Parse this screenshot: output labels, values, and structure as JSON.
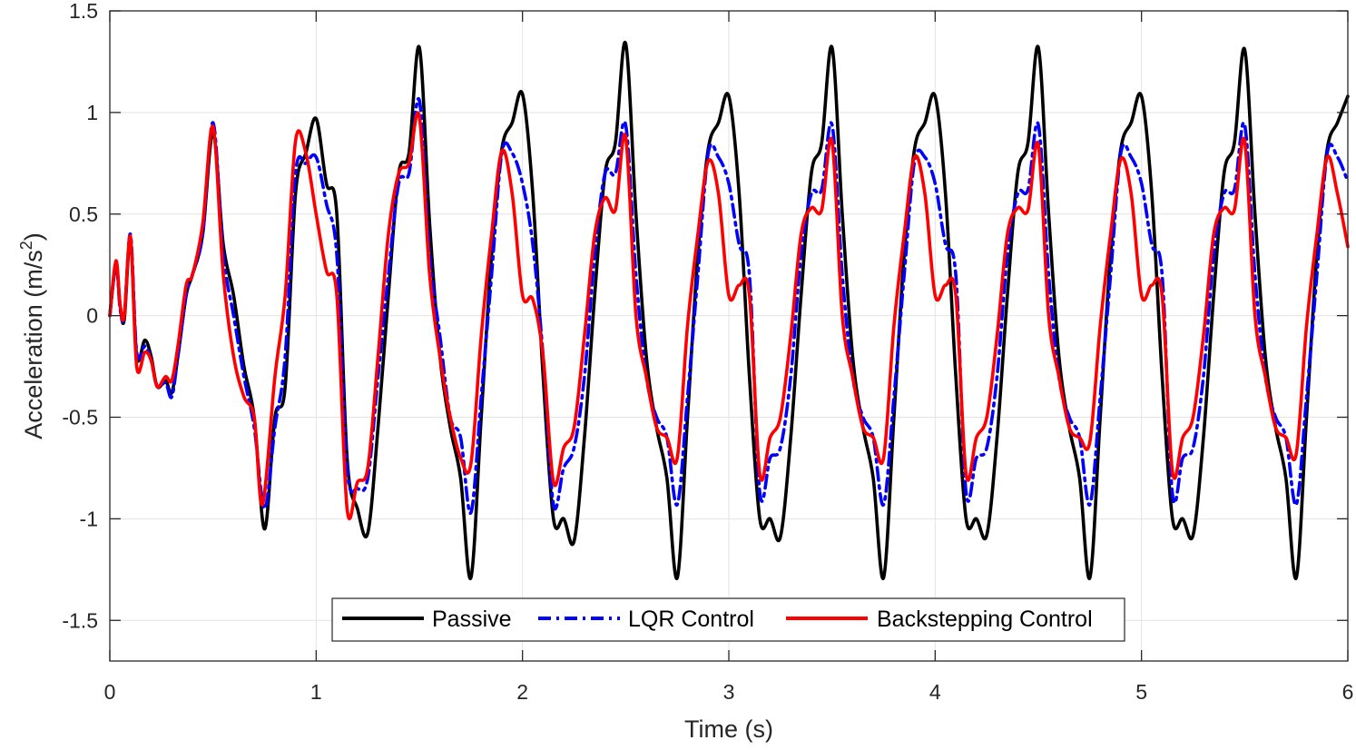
{
  "chart_data": {
    "type": "line",
    "title": "",
    "xlabel": "Time (s)",
    "ylabel": "Acceleration (m/s",
    "ylabel_superscript": "2",
    "ylabel_suffix": ")",
    "xlim": [
      0,
      6
    ],
    "ylim": [
      -1.7,
      1.5
    ],
    "xticks": [
      0,
      1,
      2,
      3,
      4,
      5,
      6
    ],
    "xtick_labels": [
      "0",
      "1",
      "2",
      "3",
      "4",
      "5",
      "6"
    ],
    "yticks": [
      -1.5,
      -1,
      -0.5,
      0,
      0.5,
      1,
      1.5
    ],
    "ytick_labels": [
      "-1.5",
      "-1",
      "-0.5",
      "0",
      "0.5",
      "1",
      "1.5"
    ],
    "grid": true,
    "legend_position": "bottom-center",
    "series": [
      {
        "name": "Passive",
        "color": "#000000",
        "style": "solid",
        "x": [
          0,
          0.03,
          0.05,
          0.07,
          0.1,
          0.13,
          0.17,
          0.2,
          0.23,
          0.27,
          0.3,
          0.33,
          0.37,
          0.4,
          0.45,
          0.5,
          0.55,
          0.6,
          0.65,
          0.7,
          0.75,
          0.8,
          0.85,
          0.9,
          0.95,
          1.0,
          1.05,
          1.1,
          1.15,
          1.2,
          1.25,
          1.3,
          1.35,
          1.4,
          1.45,
          1.5,
          1.55,
          1.6,
          1.65,
          1.7,
          1.75,
          1.8,
          1.85,
          1.9,
          1.95,
          2.0,
          2.05,
          2.1,
          2.15,
          2.2,
          2.25,
          2.3,
          2.35,
          2.4,
          2.45,
          2.5,
          2.55,
          2.6,
          2.65,
          2.7,
          2.75,
          2.8,
          2.85,
          2.9,
          2.95,
          3.0,
          3.05,
          3.1,
          3.15,
          3.2,
          3.25,
          3.3,
          3.35,
          3.4,
          3.45,
          3.5,
          3.55,
          3.6,
          3.65,
          3.7,
          3.75,
          3.8,
          3.85,
          3.9,
          3.95,
          4.0,
          4.05,
          4.1,
          4.15,
          4.2,
          4.25,
          4.3,
          4.35,
          4.4,
          4.45,
          4.5,
          4.55,
          4.6,
          4.65,
          4.7,
          4.75,
          4.8,
          4.85,
          4.9,
          4.95,
          5.0,
          5.05,
          5.1,
          5.15,
          5.2,
          5.25,
          5.3,
          5.35,
          5.4,
          5.45,
          5.5,
          5.55,
          5.6,
          5.65,
          5.7,
          5.75,
          5.8,
          5.85,
          5.9,
          5.95,
          6.0
        ],
        "y": [
          0,
          0.25,
          0.05,
          -0.02,
          0.38,
          -0.2,
          -0.12,
          -0.2,
          -0.35,
          -0.32,
          -0.38,
          -0.2,
          0.1,
          0.2,
          0.4,
          0.9,
          0.35,
          0.1,
          -0.25,
          -0.5,
          -1.05,
          -0.5,
          -0.35,
          0.6,
          0.8,
          0.97,
          0.65,
          0.5,
          -0.7,
          -0.95,
          -1.07,
          -0.55,
          0.1,
          0.7,
          0.8,
          1.32,
          0.45,
          -0.2,
          -0.55,
          -0.8,
          -1.29,
          -0.5,
          0.3,
          0.82,
          0.95,
          1.09,
          0.6,
          -0.3,
          -1.0,
          -1.0,
          -1.11,
          -0.6,
          0.1,
          0.7,
          0.85,
          1.34,
          0.5,
          -0.2,
          -0.55,
          -0.8,
          -1.29,
          -0.5,
          0.3,
          0.82,
          0.95,
          1.08,
          0.6,
          -0.3,
          -1.0,
          -1.0,
          -1.09,
          -0.6,
          0.1,
          0.7,
          0.85,
          1.32,
          0.5,
          -0.2,
          -0.55,
          -0.8,
          -1.29,
          -0.5,
          0.3,
          0.82,
          0.95,
          1.08,
          0.6,
          -0.3,
          -1.0,
          -1.0,
          -1.08,
          -0.6,
          0.1,
          0.7,
          0.85,
          1.32,
          0.5,
          -0.2,
          -0.55,
          -0.8,
          -1.29,
          -0.5,
          0.3,
          0.82,
          0.95,
          1.08,
          0.6,
          -0.3,
          -1.0,
          -1.0,
          -1.08,
          -0.6,
          0.1,
          0.7,
          0.85,
          1.31,
          0.5,
          -0.2,
          -0.55,
          -0.8,
          -1.29,
          -0.5,
          0.3,
          0.82,
          0.95,
          1.08
        ]
      },
      {
        "name": "LQR Control",
        "color": "#0000ff",
        "style": "dash-dot",
        "x": [
          0,
          0.03,
          0.05,
          0.07,
          0.1,
          0.13,
          0.17,
          0.2,
          0.23,
          0.27,
          0.3,
          0.33,
          0.37,
          0.4,
          0.45,
          0.5,
          0.55,
          0.6,
          0.65,
          0.7,
          0.75,
          0.8,
          0.85,
          0.9,
          0.95,
          1.0,
          1.05,
          1.1,
          1.15,
          1.2,
          1.25,
          1.3,
          1.35,
          1.4,
          1.45,
          1.5,
          1.55,
          1.6,
          1.65,
          1.7,
          1.75,
          1.8,
          1.85,
          1.9,
          1.95,
          2.0,
          2.05,
          2.1,
          2.15,
          2.2,
          2.25,
          2.3,
          2.35,
          2.4,
          2.45,
          2.5,
          2.55,
          2.6,
          2.65,
          2.7,
          2.75,
          2.8,
          2.85,
          2.9,
          2.95,
          3.0,
          3.05,
          3.1,
          3.15,
          3.2,
          3.25,
          3.3,
          3.35,
          3.4,
          3.45,
          3.5,
          3.55,
          3.6,
          3.65,
          3.7,
          3.75,
          3.8,
          3.85,
          3.9,
          3.95,
          4.0,
          4.05,
          4.1,
          4.15,
          4.2,
          4.25,
          4.3,
          4.35,
          4.4,
          4.45,
          4.5,
          4.55,
          4.6,
          4.65,
          4.7,
          4.75,
          4.8,
          4.85,
          4.9,
          4.95,
          5.0,
          5.05,
          5.1,
          5.15,
          5.2,
          5.25,
          5.3,
          5.35,
          5.4,
          5.45,
          5.5,
          5.55,
          5.6,
          5.65,
          5.7,
          5.75,
          5.8,
          5.85,
          5.9,
          5.95,
          6.0
        ],
        "y": [
          0,
          0.25,
          0.03,
          0.0,
          0.4,
          -0.18,
          -0.15,
          -0.22,
          -0.35,
          -0.33,
          -0.4,
          -0.2,
          0.1,
          0.2,
          0.4,
          0.95,
          0.3,
          0.0,
          -0.3,
          -0.55,
          -0.95,
          -0.55,
          -0.2,
          0.7,
          0.75,
          0.78,
          0.55,
          0.3,
          -0.75,
          -0.85,
          -0.8,
          -0.3,
          0.2,
          0.65,
          0.7,
          1.06,
          0.3,
          -0.1,
          -0.5,
          -0.6,
          -0.97,
          -0.4,
          0.2,
          0.8,
          0.8,
          0.65,
          0.35,
          -0.2,
          -0.93,
          -0.75,
          -0.65,
          -0.3,
          0.3,
          0.7,
          0.7,
          0.94,
          0.2,
          -0.3,
          -0.5,
          -0.6,
          -0.93,
          -0.4,
          0.2,
          0.8,
          0.78,
          0.65,
          0.35,
          0.2,
          -0.87,
          -0.7,
          -0.65,
          -0.3,
          0.3,
          0.6,
          0.62,
          0.94,
          0.2,
          -0.3,
          -0.5,
          -0.6,
          -0.93,
          -0.4,
          0.2,
          0.76,
          0.78,
          0.65,
          0.35,
          0.2,
          -0.87,
          -0.7,
          -0.65,
          -0.3,
          0.3,
          0.6,
          0.62,
          0.94,
          0.2,
          -0.3,
          -0.5,
          -0.6,
          -0.93,
          -0.4,
          0.2,
          0.8,
          0.78,
          0.65,
          0.35,
          0.2,
          -0.88,
          -0.7,
          -0.65,
          -0.3,
          0.3,
          0.6,
          0.62,
          0.94,
          0.2,
          -0.3,
          -0.5,
          -0.6,
          -0.93,
          -0.4,
          0.2,
          0.8,
          0.78,
          0.66
        ]
      },
      {
        "name": "Backstepping Control",
        "color": "#ff0000",
        "style": "solid",
        "x": [
          0,
          0.03,
          0.05,
          0.07,
          0.1,
          0.13,
          0.17,
          0.2,
          0.23,
          0.27,
          0.3,
          0.33,
          0.37,
          0.4,
          0.45,
          0.5,
          0.55,
          0.6,
          0.65,
          0.7,
          0.74,
          0.8,
          0.85,
          0.9,
          0.95,
          1.0,
          1.05,
          1.1,
          1.15,
          1.2,
          1.25,
          1.3,
          1.35,
          1.4,
          1.45,
          1.5,
          1.55,
          1.6,
          1.65,
          1.7,
          1.75,
          1.8,
          1.85,
          1.9,
          1.95,
          2.0,
          2.05,
          2.1,
          2.15,
          2.2,
          2.25,
          2.3,
          2.35,
          2.4,
          2.45,
          2.5,
          2.55,
          2.6,
          2.65,
          2.7,
          2.75,
          2.8,
          2.85,
          2.9,
          2.95,
          3.0,
          3.05,
          3.1,
          3.15,
          3.2,
          3.25,
          3.3,
          3.35,
          3.4,
          3.45,
          3.5,
          3.55,
          3.6,
          3.65,
          3.7,
          3.75,
          3.8,
          3.85,
          3.9,
          3.95,
          4.0,
          4.05,
          4.1,
          4.15,
          4.2,
          4.25,
          4.3,
          4.35,
          4.4,
          4.45,
          4.5,
          4.55,
          4.6,
          4.65,
          4.7,
          4.75,
          4.8,
          4.85,
          4.9,
          4.95,
          5.0,
          5.05,
          5.1,
          5.15,
          5.2,
          5.25,
          5.3,
          5.35,
          5.4,
          5.45,
          5.5,
          5.55,
          5.6,
          5.65,
          5.7,
          5.75,
          5.8,
          5.85,
          5.9,
          5.95,
          6.0
        ],
        "y": [
          0,
          0.27,
          0.05,
          0.0,
          0.39,
          -0.25,
          -0.18,
          -0.22,
          -0.35,
          -0.3,
          -0.32,
          -0.15,
          0.15,
          0.2,
          0.45,
          0.93,
          0.2,
          -0.2,
          -0.4,
          -0.5,
          -0.93,
          -0.3,
          0.1,
          0.86,
          0.8,
          0.5,
          0.22,
          0.1,
          -0.95,
          -0.82,
          -0.75,
          -0.2,
          0.4,
          0.7,
          0.75,
          0.98,
          0.2,
          -0.2,
          -0.5,
          -0.7,
          -0.73,
          -0.1,
          0.4,
          0.81,
          0.6,
          0.1,
          0.08,
          -0.2,
          -0.82,
          -0.65,
          -0.55,
          -0.1,
          0.4,
          0.58,
          0.52,
          0.88,
          0.0,
          -0.3,
          -0.55,
          -0.6,
          -0.7,
          -0.05,
          0.4,
          0.76,
          0.6,
          0.1,
          0.15,
          0.1,
          -0.78,
          -0.6,
          -0.5,
          -0.1,
          0.4,
          0.53,
          0.52,
          0.86,
          0.0,
          -0.3,
          -0.55,
          -0.6,
          -0.7,
          -0.05,
          0.4,
          0.78,
          0.6,
          0.1,
          0.15,
          0.1,
          -0.78,
          -0.6,
          -0.5,
          -0.1,
          0.4,
          0.53,
          0.52,
          0.84,
          0.0,
          -0.3,
          -0.55,
          -0.6,
          -0.62,
          -0.05,
          0.4,
          0.77,
          0.6,
          0.1,
          0.15,
          0.1,
          -0.77,
          -0.6,
          -0.5,
          -0.1,
          0.4,
          0.53,
          0.52,
          0.86,
          0.0,
          -0.3,
          -0.55,
          -0.6,
          -0.68,
          -0.05,
          0.4,
          0.78,
          0.6,
          0.34
        ]
      }
    ]
  }
}
